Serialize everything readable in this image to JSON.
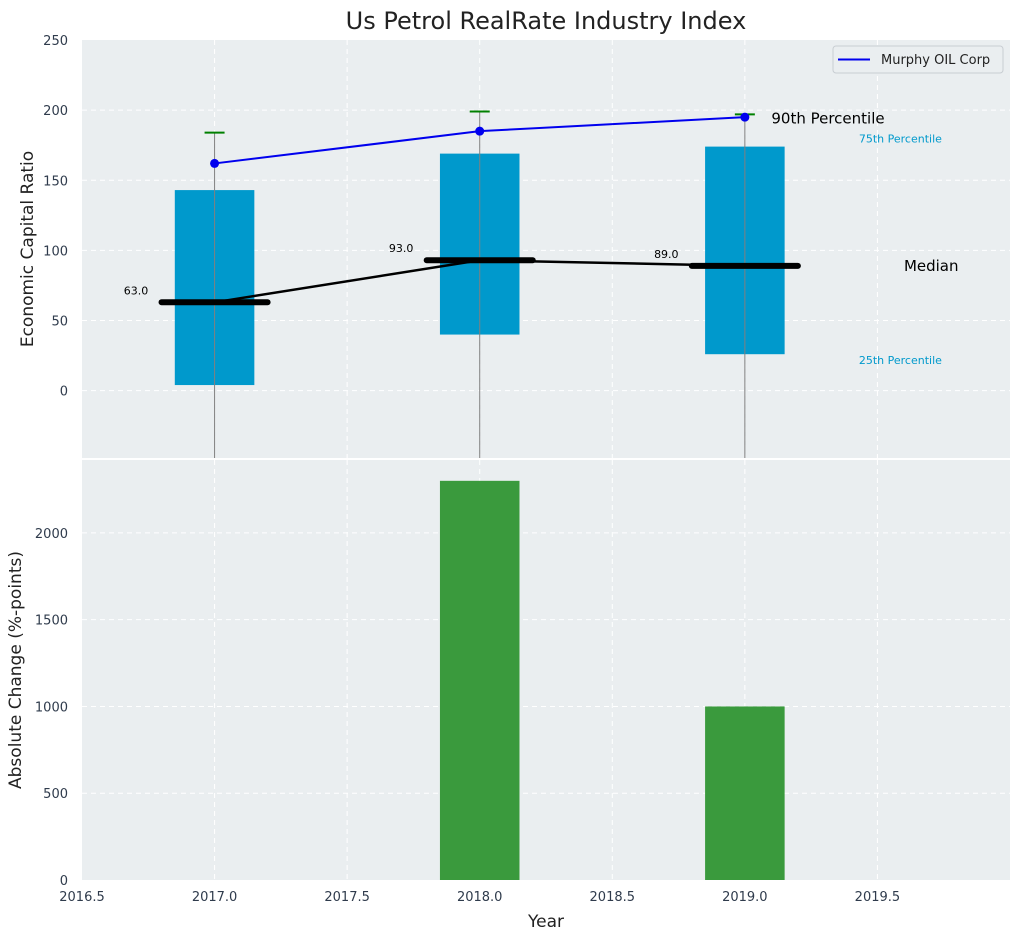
{
  "chart_data": [
    {
      "type": "box",
      "title": "Us Petrol RealRate Industry Index",
      "xlabel": "",
      "ylabel": "Economic Capital Ratio",
      "xlim": [
        2016.5,
        2020.0
      ],
      "ylim": [
        -48,
        250
      ],
      "yticks": [
        0,
        50,
        100,
        150,
        200,
        250
      ],
      "years": [
        2017,
        2018,
        2019
      ],
      "p25": [
        4,
        40,
        26
      ],
      "p75": [
        143,
        169,
        174
      ],
      "median": [
        63.0,
        93.0,
        89.0
      ],
      "median_labels": [
        "63.0",
        "93.0",
        "89.0"
      ],
      "p90": [
        184,
        199,
        197
      ],
      "series": [
        {
          "name": "Murphy OIL Corp",
          "values": [
            162,
            185,
            195
          ],
          "color": "#0000ee"
        }
      ],
      "annotations": {
        "p90": "90th Percentile",
        "p75": "75th Percentile",
        "median": "Median",
        "p25": "25th Percentile"
      },
      "legend_position": "top-right",
      "colors": {
        "box": "#0099cc",
        "median": "#000000",
        "p90": "#008000",
        "whisker": "#808080",
        "background": "#eaeef0"
      }
    },
    {
      "type": "bar",
      "xlabel": "Year",
      "ylabel": "Absolute Change (%-points)",
      "xlim": [
        2016.5,
        2020.0
      ],
      "ylim": [
        0,
        2420
      ],
      "yticks": [
        0,
        500,
        1000,
        1500,
        2000
      ],
      "xticks": [
        2016.5,
        2017.0,
        2017.5,
        2018.0,
        2018.5,
        2019.0,
        2019.5
      ],
      "xtick_labels": [
        "2016.5",
        "2017.0",
        "2017.5",
        "2018.0",
        "2018.5",
        "2019.0",
        "2019.5"
      ],
      "categories": [
        2017,
        2018,
        2019
      ],
      "values": [
        0,
        2300,
        1000
      ],
      "colors": {
        "bar": "#3a9a3d"
      }
    }
  ]
}
